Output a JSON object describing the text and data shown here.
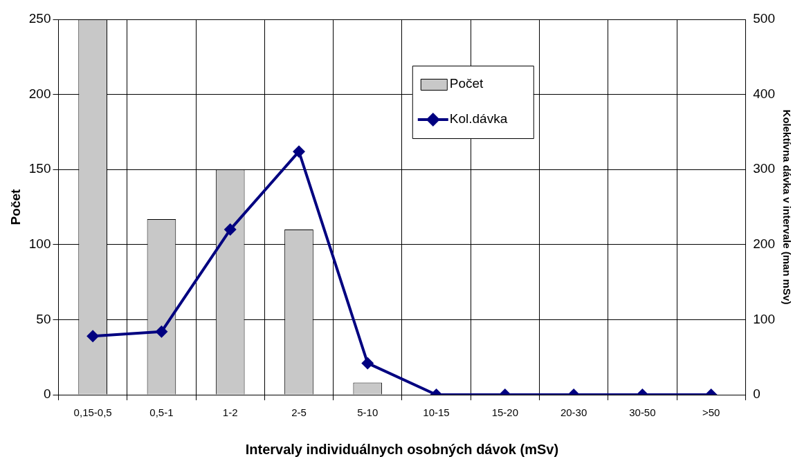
{
  "chart_data": {
    "type": "bar",
    "xlabel": "Intervaly individuálnych osobných dávok (mSv)",
    "ylabel": "Počet",
    "y2label": "Kolektívna dávka v intervale (man mSv)",
    "categories": [
      "0,15-0,5",
      "0,5-1",
      "1-2",
      "2-5",
      "5-10",
      "10-15",
      "15-20",
      "20-30",
      "30-50",
      ">50"
    ],
    "series": [
      {
        "name": "Počet",
        "color": "#c8c8c8",
        "values": [
          250,
          117,
          150,
          110,
          8,
          0,
          0,
          0,
          0,
          0
        ]
      },
      {
        "name": "Kol.dávka",
        "type": "line",
        "axis": "y2",
        "color": "#000080",
        "marker": "diamond",
        "values": [
          78,
          84,
          220,
          324,
          42,
          0,
          0,
          0,
          0,
          0
        ]
      }
    ],
    "ylim": [
      0,
      250
    ],
    "yticks": [
      0,
      50,
      100,
      150,
      200,
      250
    ],
    "y2lim": [
      0,
      500
    ],
    "y2ticks": [
      0,
      100,
      200,
      300,
      400,
      500
    ],
    "grid": true,
    "legend": "top right"
  }
}
